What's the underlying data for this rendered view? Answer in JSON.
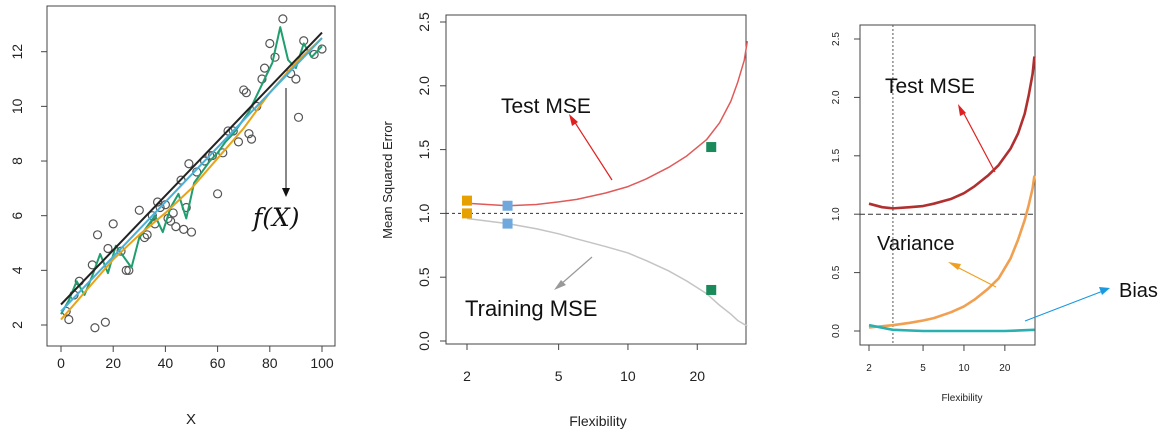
{
  "chart_data": [
    {
      "type": "scatter",
      "xlabel": "X",
      "ylabel": "",
      "xlim": [
        0,
        100
      ],
      "ylim": [
        2,
        13
      ],
      "xticks": [
        0,
        20,
        40,
        60,
        80,
        100
      ],
      "yticks": [
        2,
        4,
        6,
        8,
        10,
        12
      ],
      "points": [
        [
          2,
          2.5
        ],
        [
          3,
          2.2
        ],
        [
          5,
          3.1
        ],
        [
          7,
          3.6
        ],
        [
          12,
          4.2
        ],
        [
          13,
          1.9
        ],
        [
          14,
          5.3
        ],
        [
          17,
          2.1
        ],
        [
          18,
          4.8
        ],
        [
          20,
          5.7
        ],
        [
          23,
          4.7
        ],
        [
          25,
          4.0
        ],
        [
          26,
          4.0
        ],
        [
          30,
          6.2
        ],
        [
          32,
          5.2
        ],
        [
          33,
          5.3
        ],
        [
          35,
          6.0
        ],
        [
          36,
          5.7
        ],
        [
          37,
          6.5
        ],
        [
          38,
          6.3
        ],
        [
          40,
          6.4
        ],
        [
          41,
          5.9
        ],
        [
          42,
          5.8
        ],
        [
          43,
          6.1
        ],
        [
          44,
          5.6
        ],
        [
          46,
          7.3
        ],
        [
          47,
          5.5
        ],
        [
          48,
          6.3
        ],
        [
          49,
          7.9
        ],
        [
          50,
          5.4
        ],
        [
          52,
          7.6
        ],
        [
          55,
          8.0
        ],
        [
          57,
          8.2
        ],
        [
          58,
          8.2
        ],
        [
          60,
          6.8
        ],
        [
          62,
          8.3
        ],
        [
          64,
          9.1
        ],
        [
          66,
          9.1
        ],
        [
          68,
          8.7
        ],
        [
          70,
          10.6
        ],
        [
          71,
          10.5
        ],
        [
          72,
          9.0
        ],
        [
          73,
          8.8
        ],
        [
          75,
          10.0
        ],
        [
          77,
          11.0
        ],
        [
          78,
          11.4
        ],
        [
          80,
          12.3
        ],
        [
          82,
          11.8
        ],
        [
          85,
          13.2
        ],
        [
          88,
          11.2
        ],
        [
          90,
          11.0
        ],
        [
          91,
          9.6
        ],
        [
          93,
          12.4
        ],
        [
          97,
          11.9
        ],
        [
          100,
          12.1
        ]
      ],
      "series": [
        {
          "color": "#222222",
          "x": [
            0,
            100
          ],
          "y": [
            2.75,
            12.7
          ]
        },
        {
          "color": "#4ab0d8",
          "x": [
            0,
            100
          ],
          "y": [
            2.5,
            12.5
          ]
        },
        {
          "color": "#e8a317",
          "x": [
            0,
            10,
            20,
            30,
            40,
            50,
            60,
            70,
            80,
            90,
            100
          ],
          "y": [
            2.2,
            3.3,
            4.4,
            5.3,
            6.1,
            7.0,
            8.1,
            9.2,
            10.5,
            11.6,
            12.5
          ]
        },
        {
          "color": "#1f9e6e",
          "x": [
            0,
            3,
            6,
            9,
            12,
            15,
            18,
            21,
            24,
            27,
            30,
            33,
            36,
            39,
            42,
            45,
            48,
            51,
            54,
            57,
            60,
            63,
            66,
            69,
            72,
            75,
            78,
            81,
            84,
            87,
            90,
            93,
            96,
            100
          ],
          "y": [
            2.4,
            2.9,
            3.6,
            3.1,
            3.8,
            4.6,
            3.9,
            4.9,
            4.5,
            4.1,
            5.2,
            5.6,
            6.0,
            5.4,
            6.3,
            6.8,
            5.9,
            7.2,
            7.6,
            8.0,
            8.3,
            8.7,
            9.0,
            9.4,
            9.8,
            10.4,
            11.0,
            11.6,
            12.9,
            11.7,
            11.4,
            12.3,
            11.8,
            12.2
          ]
        }
      ],
      "annotation": "f(X)"
    },
    {
      "type": "line",
      "xlabel": "Flexibility",
      "ylabel": "Mean Squared Error",
      "xscale": "log",
      "xlim": [
        2,
        35
      ],
      "ylim": [
        0,
        2.5
      ],
      "xticks": [
        2,
        5,
        10,
        20
      ],
      "yticks": [
        0.0,
        0.5,
        1.0,
        1.5,
        2.0,
        2.5
      ],
      "reference_line": 1.0,
      "series": [
        {
          "name": "Test MSE",
          "color": "#e05a5a",
          "x": [
            2,
            3,
            4,
            5,
            6,
            8,
            10,
            12,
            15,
            18,
            22,
            25,
            28,
            30,
            32,
            33
          ],
          "y": [
            1.08,
            1.06,
            1.07,
            1.09,
            1.11,
            1.16,
            1.21,
            1.27,
            1.36,
            1.45,
            1.58,
            1.71,
            1.88,
            2.03,
            2.2,
            2.35
          ]
        },
        {
          "name": "Training MSE",
          "color": "#c4c4c4",
          "x": [
            2,
            3,
            4,
            5,
            6,
            8,
            10,
            12,
            15,
            18,
            22,
            25,
            28,
            30,
            32,
            33
          ],
          "y": [
            0.96,
            0.92,
            0.88,
            0.84,
            0.8,
            0.74,
            0.69,
            0.63,
            0.55,
            0.47,
            0.37,
            0.28,
            0.21,
            0.16,
            0.13,
            0.12
          ]
        }
      ],
      "markers": [
        {
          "x": 2,
          "y": 1.1,
          "color": "#e6a100"
        },
        {
          "x": 2,
          "y": 1.0,
          "color": "#e6a100"
        },
        {
          "x": 3,
          "y": 1.06,
          "color": "#6fa8dc"
        },
        {
          "x": 3,
          "y": 0.92,
          "color": "#6fa8dc"
        },
        {
          "x": 23,
          "y": 1.52,
          "color": "#1a8a5a"
        },
        {
          "x": 23,
          "y": 0.4,
          "color": "#1a8a5a"
        }
      ],
      "annotations": [
        "Test MSE",
        "Training MSE"
      ]
    },
    {
      "type": "line",
      "xlabel": "Flexibility",
      "ylabel": "",
      "xscale": "log",
      "xlim": [
        2,
        35
      ],
      "ylim": [
        0,
        2.5
      ],
      "xticks": [
        2,
        5,
        10,
        20
      ],
      "yticks": [
        0.0,
        0.5,
        1.0,
        1.5,
        2.0,
        2.5
      ],
      "reference_line": 1.0,
      "vertical_line": 3,
      "series": [
        {
          "name": "Test MSE",
          "color": "#b03030",
          "x": [
            2,
            2.5,
            3,
            4,
            5,
            6,
            8,
            10,
            12,
            15,
            18,
            22,
            25,
            28,
            30,
            32,
            33
          ],
          "y": [
            1.09,
            1.06,
            1.05,
            1.06,
            1.07,
            1.09,
            1.13,
            1.18,
            1.24,
            1.33,
            1.42,
            1.56,
            1.69,
            1.86,
            2.02,
            2.2,
            2.35
          ]
        },
        {
          "name": "Variance",
          "color": "#f0a050",
          "x": [
            2,
            3,
            4,
            5,
            6,
            8,
            10,
            12,
            15,
            18,
            22,
            25,
            28,
            30,
            32,
            33
          ],
          "y": [
            0.03,
            0.05,
            0.07,
            0.09,
            0.11,
            0.16,
            0.21,
            0.27,
            0.36,
            0.45,
            0.62,
            0.78,
            0.95,
            1.08,
            1.22,
            1.33
          ]
        },
        {
          "name": "Bias",
          "color": "#2ab0b0",
          "x": [
            2,
            3,
            5,
            10,
            20,
            33
          ],
          "y": [
            0.05,
            0.01,
            0.0,
            0.0,
            0.0,
            0.01
          ]
        }
      ],
      "annotations": [
        "Test MSE",
        "Variance",
        "Bias"
      ]
    }
  ]
}
